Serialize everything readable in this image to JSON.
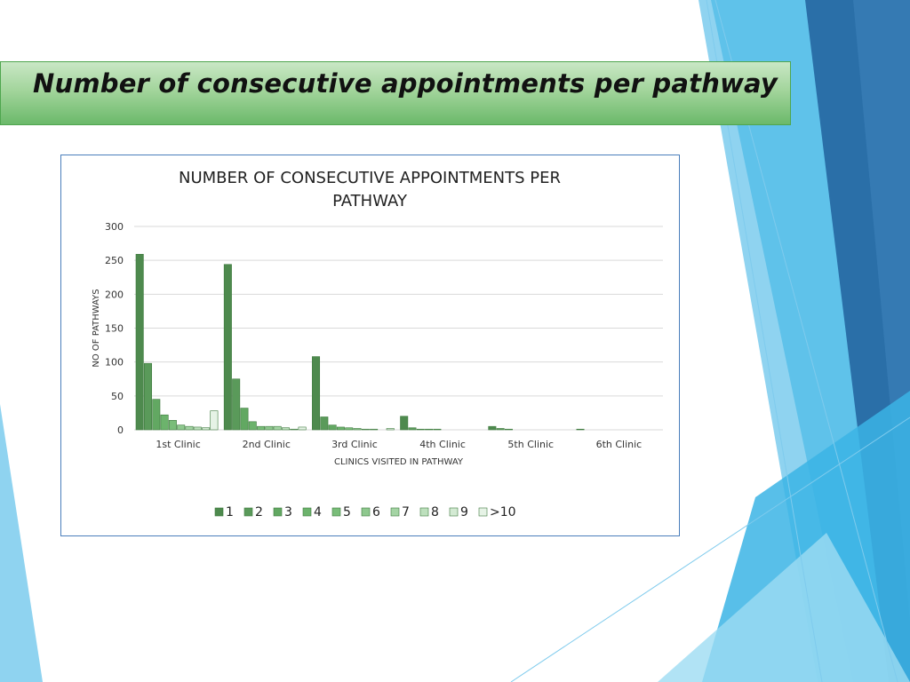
{
  "slide": {
    "title": "Number of consecutive appointments per pathway"
  },
  "colors": {
    "title_bar": "#8fcc88",
    "chart_border": "#4a7ebb",
    "deco_blue_light": "#8fd3f0",
    "deco_blue_mid": "#3bb4e5",
    "deco_blue_dark": "#2a6fa8"
  },
  "chart_data": {
    "type": "bar",
    "title": "NUMBER OF CONSECUTIVE APPOINTMENTS PER PATHWAY",
    "title_lines": [
      "NUMBER OF CONSECUTIVE APPOINTMENTS PER",
      "PATHWAY"
    ],
    "xlabel": "CLINICS VISITED IN PATHWAY",
    "ylabel": "NO OF PATHWAYS",
    "ylim": [
      0,
      300
    ],
    "yticks": [
      0,
      50,
      100,
      150,
      200,
      250,
      300
    ],
    "grid": true,
    "legend_position": "bottom",
    "categories": [
      "1st Clinic",
      "2nd Clinic",
      "3rd Clinic",
      "4th Clinic",
      "5th Clinic",
      "6th Clinic"
    ],
    "series": [
      {
        "name": "1",
        "color": "#4e8a4e",
        "values": [
          259,
          244,
          108,
          20,
          5,
          1
        ]
      },
      {
        "name": "2",
        "color": "#5a9a5a",
        "values": [
          98,
          75,
          19,
          3,
          2,
          0
        ]
      },
      {
        "name": "3",
        "color": "#62a862",
        "values": [
          45,
          32,
          7,
          1,
          1,
          0
        ]
      },
      {
        "name": "4",
        "color": "#6cb36c",
        "values": [
          22,
          12,
          4,
          1,
          0,
          0
        ]
      },
      {
        "name": "5",
        "color": "#79bd79",
        "values": [
          14,
          5,
          3,
          1,
          0,
          0
        ]
      },
      {
        "name": "6",
        "color": "#8ec88e",
        "values": [
          7,
          5,
          2,
          0,
          0,
          0
        ]
      },
      {
        "name": "7",
        "color": "#a4d4a4",
        "values": [
          5,
          5,
          1,
          0,
          0,
          0
        ]
      },
      {
        "name": "8",
        "color": "#bde0bd",
        "values": [
          4,
          3,
          1,
          0,
          0,
          0
        ]
      },
      {
        "name": "9",
        "color": "#d3ead3",
        "values": [
          3,
          1,
          0,
          0,
          0,
          0
        ]
      },
      {
        "name": ">10",
        "color": "#e6f3e6",
        "values": [
          28,
          4,
          2,
          0,
          0,
          0
        ]
      }
    ]
  }
}
